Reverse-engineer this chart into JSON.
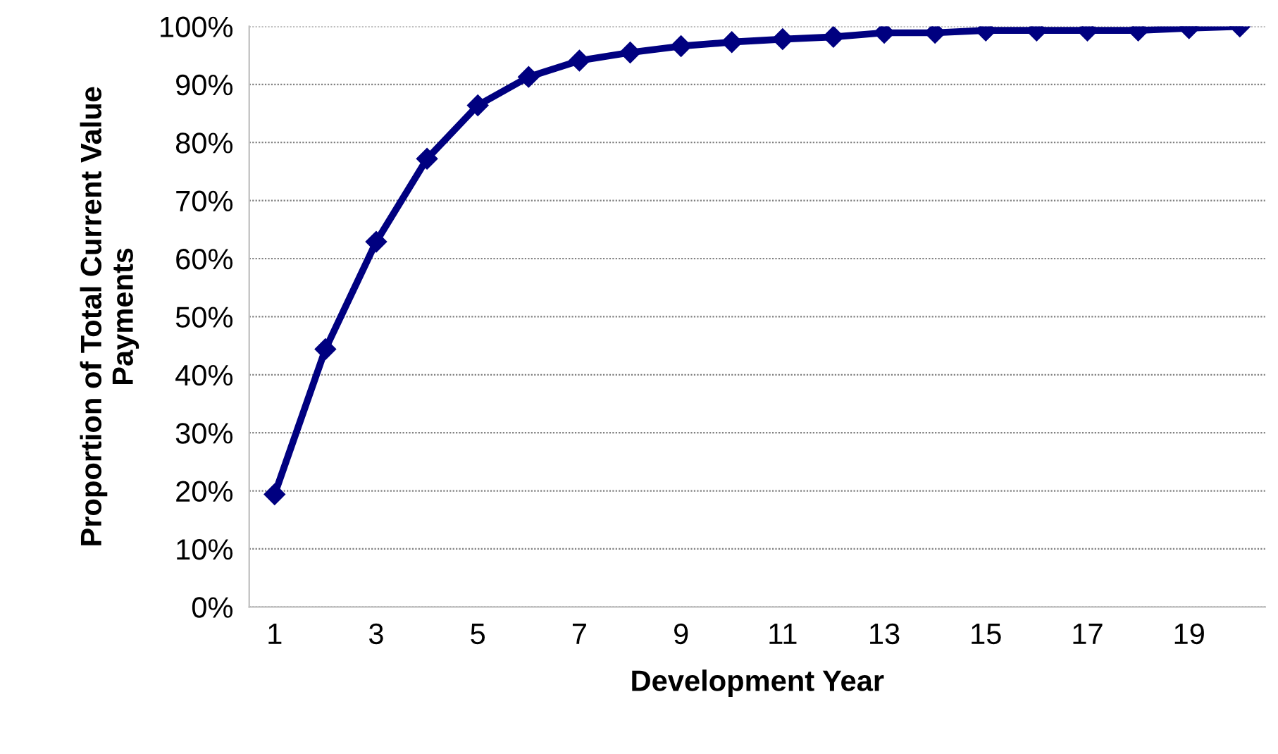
{
  "chart_data": {
    "type": "line",
    "xlabel": "Development Year",
    "ylabel": "Proportion of Total Current Value\nPayments",
    "categories": [
      "1",
      null,
      "3",
      null,
      "5",
      null,
      "7",
      null,
      "9",
      null,
      "11",
      null,
      "13",
      null,
      "15",
      null,
      "17",
      null,
      "19",
      null
    ],
    "series": [
      {
        "color": "#000080",
        "values": [
          19.4,
          44.4,
          62.9,
          77.2,
          86.4,
          91.3,
          94.1,
          95.5,
          96.6,
          97.3,
          97.8,
          98.2,
          98.9,
          98.9,
          99.3,
          99.3,
          99.3,
          99.3,
          99.7,
          100
        ]
      }
    ],
    "ylim": [
      0,
      100
    ],
    "yticks": [
      {
        "value": 0,
        "label": "0%"
      },
      {
        "value": 10,
        "label": "10%"
      },
      {
        "value": 20,
        "label": "20%"
      },
      {
        "value": 30,
        "label": "30%"
      },
      {
        "value": 40,
        "label": "40%"
      },
      {
        "value": 50,
        "label": "50%"
      },
      {
        "value": 60,
        "label": "60%"
      },
      {
        "value": 70,
        "label": "70%"
      },
      {
        "value": 80,
        "label": "80%"
      },
      {
        "value": 90,
        "label": "90%"
      },
      {
        "value": 100,
        "label": "100%"
      }
    ],
    "grid": "y",
    "marker": "diamond",
    "line_style": "solid"
  }
}
